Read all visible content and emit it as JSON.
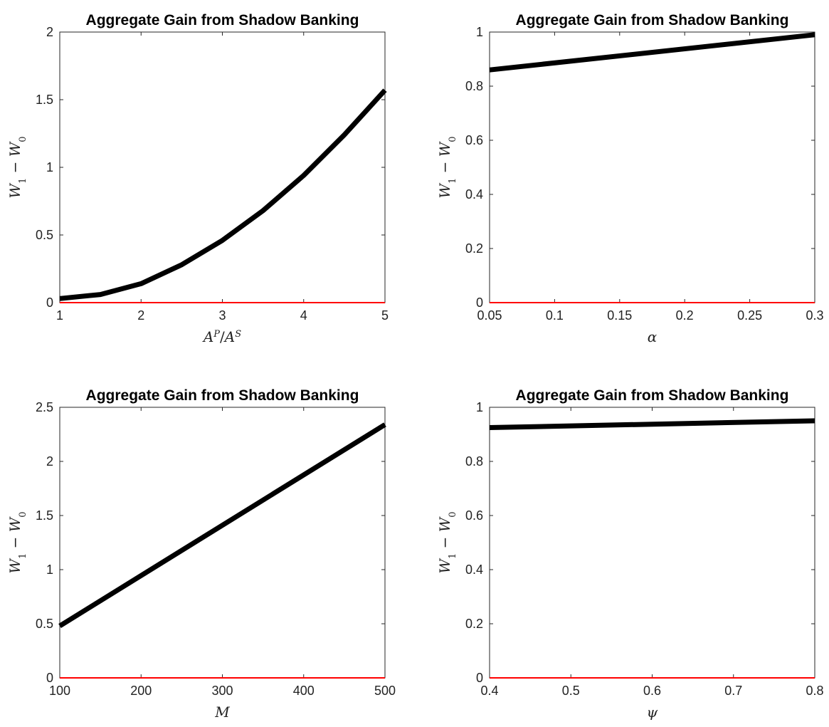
{
  "chart_data": [
    {
      "type": "line",
      "title": "Aggregate Gain from Shadow Banking",
      "xlabel": {
        "parts": [
          {
            "t": "A",
            "i": true
          },
          {
            "t": "P",
            "sup": true,
            "i": true
          },
          {
            "t": "/",
            "i": false
          },
          {
            "t": "A",
            "i": true
          },
          {
            "t": "S",
            "sup": true,
            "i": true
          }
        ]
      },
      "ylabel": {
        "parts": [
          {
            "t": "W",
            "i": true
          },
          {
            "t": "1",
            "sub": true
          },
          {
            "t": " − ",
            "i": false
          },
          {
            "t": "W",
            "i": true
          },
          {
            "t": "0",
            "sub": true
          }
        ]
      },
      "xlim": [
        1,
        5
      ],
      "ylim": [
        0,
        2
      ],
      "xticks": [
        1,
        2,
        3,
        4,
        5
      ],
      "xtick_labels": [
        "1",
        "2",
        "3",
        "4",
        "5"
      ],
      "yticks": [
        0,
        0.5,
        1,
        1.5,
        2
      ],
      "ytick_labels": [
        "0",
        "0.5",
        "1",
        "1.5",
        "2"
      ],
      "series": [
        {
          "x": [
            1,
            1.5,
            2,
            2.5,
            3,
            3.5,
            4,
            4.5,
            5
          ],
          "y": [
            0.03,
            0.06,
            0.14,
            0.28,
            0.46,
            0.68,
            0.94,
            1.24,
            1.57
          ],
          "color": "#000000",
          "width": "thick"
        },
        {
          "x": [
            1,
            5
          ],
          "y": [
            0,
            0
          ],
          "color": "#ff0000",
          "width": "thin"
        }
      ]
    },
    {
      "type": "line",
      "title": "Aggregate Gain from Shadow Banking",
      "xlabel": {
        "parts": [
          {
            "t": "α",
            "i": true
          }
        ]
      },
      "ylabel": {
        "parts": [
          {
            "t": "W",
            "i": true
          },
          {
            "t": "1",
            "sub": true
          },
          {
            "t": " − ",
            "i": false
          },
          {
            "t": "W",
            "i": true
          },
          {
            "t": "0",
            "sub": true
          }
        ]
      },
      "xlim": [
        0.05,
        0.3
      ],
      "ylim": [
        0,
        1
      ],
      "xticks": [
        0.05,
        0.1,
        0.15,
        0.2,
        0.25,
        0.3
      ],
      "xtick_labels": [
        "0.05",
        "0.1",
        "0.15",
        "0.2",
        "0.25",
        "0.3"
      ],
      "yticks": [
        0,
        0.2,
        0.4,
        0.6,
        0.8,
        1
      ],
      "ytick_labels": [
        "0",
        "0.2",
        "0.4",
        "0.6",
        "0.8",
        "1"
      ],
      "series": [
        {
          "x": [
            0.05,
            0.3
          ],
          "y": [
            0.86,
            0.99
          ],
          "color": "#000000",
          "width": "thick"
        },
        {
          "x": [
            0.05,
            0.3
          ],
          "y": [
            0,
            0
          ],
          "color": "#ff0000",
          "width": "thin"
        }
      ]
    },
    {
      "type": "line",
      "title": "Aggregate Gain from Shadow Banking",
      "xlabel": {
        "parts": [
          {
            "t": "M",
            "i": true
          }
        ]
      },
      "ylabel": {
        "parts": [
          {
            "t": "W",
            "i": true
          },
          {
            "t": "1",
            "sub": true
          },
          {
            "t": " − ",
            "i": false
          },
          {
            "t": "W",
            "i": true
          },
          {
            "t": "0",
            "sub": true
          }
        ]
      },
      "xlim": [
        100,
        500
      ],
      "ylim": [
        0,
        2.5
      ],
      "xticks": [
        100,
        200,
        300,
        400,
        500
      ],
      "xtick_labels": [
        "100",
        "200",
        "300",
        "400",
        "500"
      ],
      "yticks": [
        0,
        0.5,
        1,
        1.5,
        2,
        2.5
      ],
      "ytick_labels": [
        "0",
        "0.5",
        "1",
        "1.5",
        "2",
        "2.5"
      ],
      "series": [
        {
          "x": [
            100,
            500
          ],
          "y": [
            0.48,
            2.34
          ],
          "color": "#000000",
          "width": "thick"
        },
        {
          "x": [
            100,
            500
          ],
          "y": [
            0,
            0
          ],
          "color": "#ff0000",
          "width": "thin"
        }
      ]
    },
    {
      "type": "line",
      "title": "Aggregate Gain from Shadow Banking",
      "xlabel": {
        "parts": [
          {
            "t": "ψ",
            "i": true
          }
        ]
      },
      "ylabel": {
        "parts": [
          {
            "t": "W",
            "i": true
          },
          {
            "t": "1",
            "sub": true
          },
          {
            "t": " − ",
            "i": false
          },
          {
            "t": "W",
            "i": true
          },
          {
            "t": "0",
            "sub": true
          }
        ]
      },
      "xlim": [
        0.4,
        0.8
      ],
      "ylim": [
        0,
        1
      ],
      "xticks": [
        0.4,
        0.5,
        0.6,
        0.7,
        0.8
      ],
      "xtick_labels": [
        "0.4",
        "0.5",
        "0.6",
        "0.7",
        "0.8"
      ],
      "yticks": [
        0,
        0.2,
        0.4,
        0.6,
        0.8,
        1
      ],
      "ytick_labels": [
        "0",
        "0.2",
        "0.4",
        "0.6",
        "0.8",
        "1"
      ],
      "series": [
        {
          "x": [
            0.4,
            0.8
          ],
          "y": [
            0.925,
            0.95
          ],
          "color": "#000000",
          "width": "thick"
        },
        {
          "x": [
            0.4,
            0.8
          ],
          "y": [
            0,
            0
          ],
          "color": "#ff0000",
          "width": "thin"
        }
      ]
    }
  ]
}
